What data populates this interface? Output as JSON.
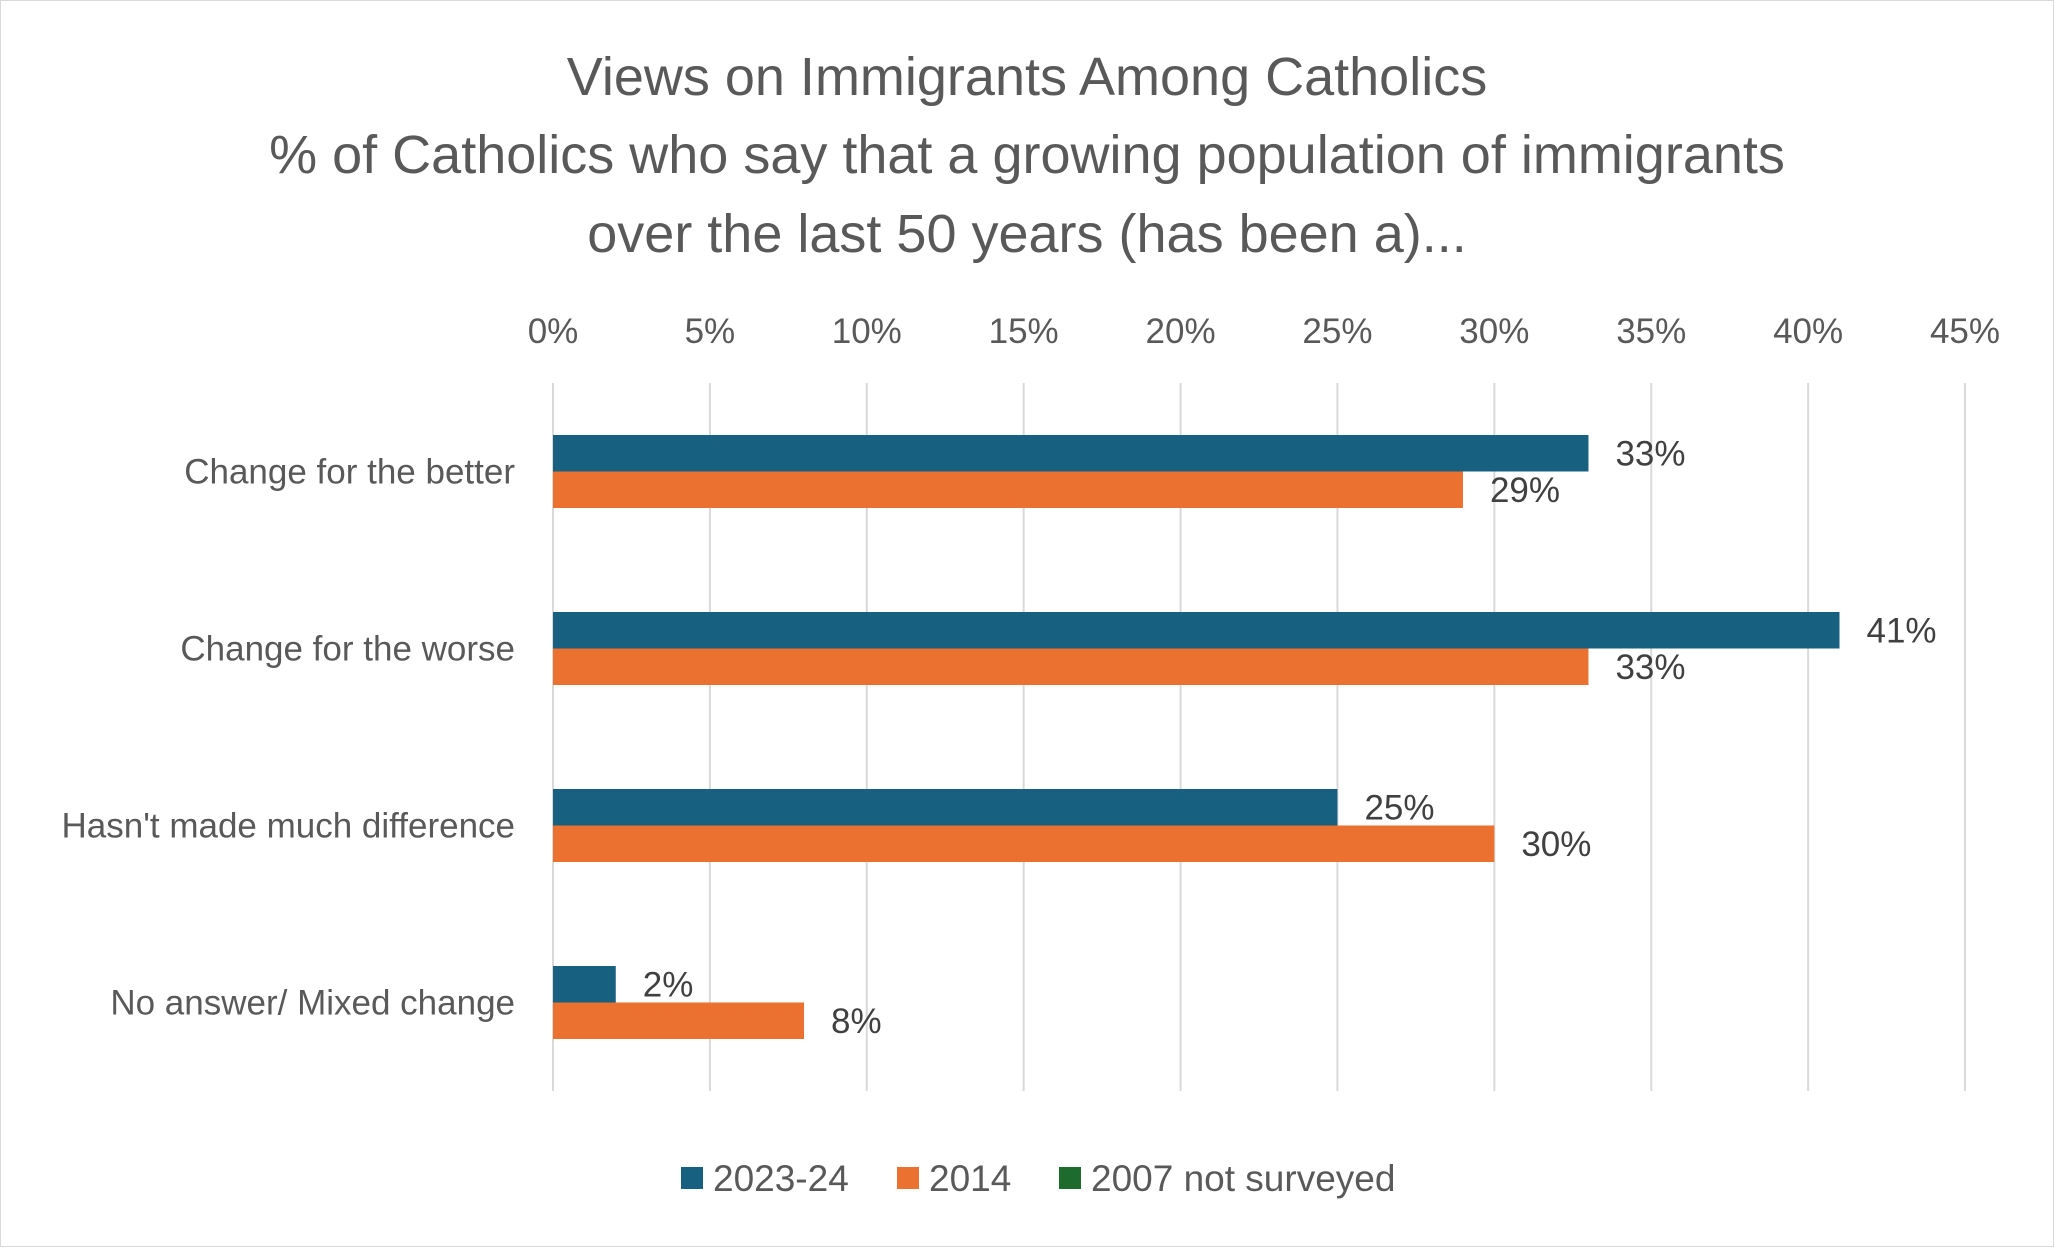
{
  "chart_data": {
    "type": "bar",
    "orientation": "horizontal",
    "title_lines": [
      "Views on Immigrants Among Catholics",
      "% of Catholics who say that a growing population of immigrants",
      "over the last 50 years (has been a)..."
    ],
    "categories": [
      "Change for the better",
      "Change for the worse",
      "Hasn't made much difference",
      "No answer/ Mixed change"
    ],
    "series": [
      {
        "name": "2023-24",
        "color": "#17607f",
        "values": [
          33,
          41,
          25,
          2
        ],
        "labels": [
          "33%",
          "41%",
          "25%",
          "2%"
        ]
      },
      {
        "name": "2014",
        "color": "#ea7130",
        "values": [
          29,
          33,
          30,
          8
        ],
        "labels": [
          "29%",
          "33%",
          "30%",
          "8%"
        ]
      },
      {
        "name": "2007 not surveyed",
        "color": "#1e6b2e",
        "values": [
          null,
          null,
          null,
          null
        ],
        "labels": [
          "",
          "",
          "",
          ""
        ]
      }
    ],
    "x_axis": {
      "position": "top",
      "min": 0,
      "max": 45,
      "step": 5,
      "tick_labels": [
        "0%",
        "5%",
        "10%",
        "15%",
        "20%",
        "25%",
        "30%",
        "35%",
        "40%",
        "45%"
      ]
    },
    "grid": true,
    "legend_position": "bottom"
  }
}
